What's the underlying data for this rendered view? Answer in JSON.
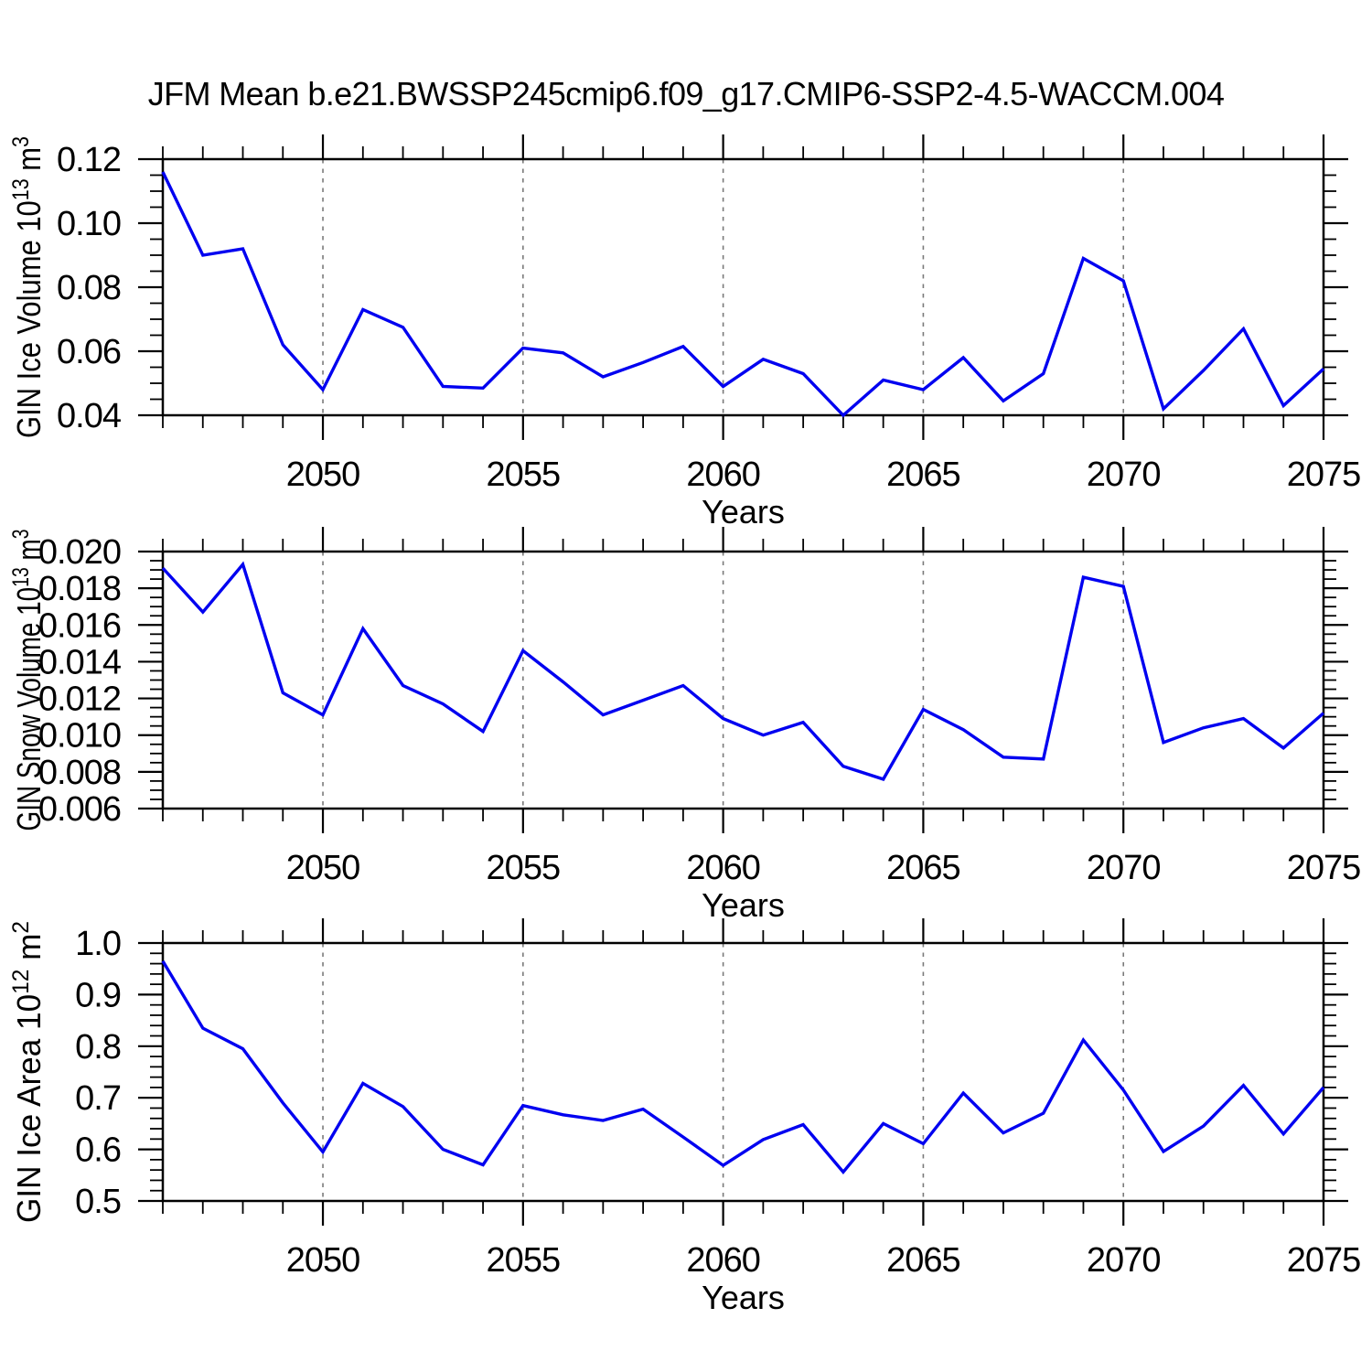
{
  "title": "JFM Mean b.e21.BWSSP245cmip6.f09_g17.CMIP6-SSP2-4.5-WACCM.004",
  "colors": {
    "line": "#0000f0",
    "axis": "#000000",
    "grid": "#7a7a7a",
    "background": "#ffffff",
    "text": "#000000"
  },
  "x_axis": {
    "label": "Years",
    "start": 2046,
    "end": 2075,
    "minor_step": 1,
    "major_ticks": [
      {
        "value": 2050,
        "label": "2050"
      },
      {
        "value": 2055,
        "label": "2055"
      },
      {
        "value": 2060,
        "label": "2060"
      },
      {
        "value": 2065,
        "label": "2065"
      },
      {
        "value": 2070,
        "label": "2070"
      },
      {
        "value": 2075,
        "label": "2075"
      }
    ],
    "grid_lines": [
      2050,
      2055,
      2060,
      2065,
      2070
    ]
  },
  "chart_data": [
    {
      "type": "line",
      "series_name": "GIN Ice Volume",
      "ylabel_parts": [
        {
          "t": "GIN Ice Volume 10"
        },
        {
          "t": "13",
          "sup": true
        },
        {
          "t": " m"
        },
        {
          "t": "3",
          "sup": true
        }
      ],
      "ylim": [
        0.04,
        0.12
      ],
      "yticks": [
        {
          "value": 0.04,
          "label": "0.04"
        },
        {
          "value": 0.06,
          "label": "0.06"
        },
        {
          "value": 0.08,
          "label": "0.08"
        },
        {
          "value": 0.1,
          "label": "0.10"
        },
        {
          "value": 0.12,
          "label": "0.12"
        }
      ],
      "y_minor_step": 0.005,
      "years": [
        2046,
        2047,
        2048,
        2049,
        2050,
        2051,
        2052,
        2053,
        2054,
        2055,
        2056,
        2057,
        2058,
        2059,
        2060,
        2061,
        2062,
        2063,
        2064,
        2065,
        2066,
        2067,
        2068,
        2069,
        2070,
        2071,
        2072,
        2073,
        2074,
        2075
      ],
      "values": [
        0.116,
        0.09,
        0.092,
        0.062,
        0.048,
        0.073,
        0.0675,
        0.049,
        0.0485,
        0.061,
        0.0595,
        0.052,
        0.0565,
        0.0615,
        0.049,
        0.0575,
        0.053,
        0.04,
        0.051,
        0.048,
        0.058,
        0.0445,
        0.053,
        0.089,
        0.082,
        0.042,
        0.054,
        0.067,
        0.043,
        0.0545
      ]
    },
    {
      "type": "line",
      "series_name": "GIN Snow Volume",
      "ylabel_parts": [
        {
          "t": "GIN Snow Volume 10"
        },
        {
          "t": "13",
          "sup": true
        },
        {
          "t": " m"
        },
        {
          "t": "3",
          "sup": true
        }
      ],
      "ylim": [
        0.006,
        0.02
      ],
      "yticks": [
        {
          "value": 0.006,
          "label": "0.006"
        },
        {
          "value": 0.008,
          "label": "0.008"
        },
        {
          "value": 0.01,
          "label": "0.010"
        },
        {
          "value": 0.012,
          "label": "0.012"
        },
        {
          "value": 0.014,
          "label": "0.014"
        },
        {
          "value": 0.016,
          "label": "0.016"
        },
        {
          "value": 0.018,
          "label": "0.018"
        },
        {
          "value": 0.02,
          "label": "0.020"
        }
      ],
      "y_minor_step": 0.0005,
      "years": [
        2046,
        2047,
        2048,
        2049,
        2050,
        2051,
        2052,
        2053,
        2054,
        2055,
        2056,
        2057,
        2058,
        2059,
        2060,
        2061,
        2062,
        2063,
        2064,
        2065,
        2066,
        2067,
        2068,
        2069,
        2070,
        2071,
        2072,
        2073,
        2074,
        2075
      ],
      "values": [
        0.0191,
        0.0167,
        0.0193,
        0.0123,
        0.0111,
        0.0158,
        0.0127,
        0.0117,
        0.0102,
        0.0146,
        0.0129,
        0.0111,
        0.0119,
        0.0127,
        0.0109,
        0.01,
        0.0107,
        0.0083,
        0.0076,
        0.0114,
        0.0103,
        0.0088,
        0.0087,
        0.0186,
        0.0181,
        0.0096,
        0.0104,
        0.0109,
        0.0093,
        0.0112
      ]
    },
    {
      "type": "line",
      "series_name": "GIN Ice Area",
      "ylabel_parts": [
        {
          "t": "GIN Ice Area 10"
        },
        {
          "t": "12",
          "sup": true
        },
        {
          "t": " m"
        },
        {
          "t": "2",
          "sup": true
        }
      ],
      "ylim": [
        0.5,
        1.0
      ],
      "yticks": [
        {
          "value": 0.5,
          "label": "0.5"
        },
        {
          "value": 0.6,
          "label": "0.6"
        },
        {
          "value": 0.7,
          "label": "0.7"
        },
        {
          "value": 0.8,
          "label": "0.8"
        },
        {
          "value": 0.9,
          "label": "0.9"
        },
        {
          "value": 1.0,
          "label": "1.0"
        }
      ],
      "y_minor_step": 0.02,
      "years": [
        2046,
        2047,
        2048,
        2049,
        2050,
        2051,
        2052,
        2053,
        2054,
        2055,
        2056,
        2057,
        2058,
        2059,
        2060,
        2061,
        2062,
        2063,
        2064,
        2065,
        2066,
        2067,
        2068,
        2069,
        2070,
        2071,
        2072,
        2073,
        2074,
        2075
      ],
      "values": [
        0.965,
        0.835,
        0.795,
        0.69,
        0.595,
        0.728,
        0.683,
        0.6,
        0.57,
        0.685,
        0.667,
        0.656,
        0.678,
        0.624,
        0.569,
        0.619,
        0.648,
        0.556,
        0.65,
        0.611,
        0.709,
        0.632,
        0.67,
        0.812,
        0.715,
        0.596,
        0.645,
        0.724,
        0.63,
        0.72
      ]
    }
  ]
}
